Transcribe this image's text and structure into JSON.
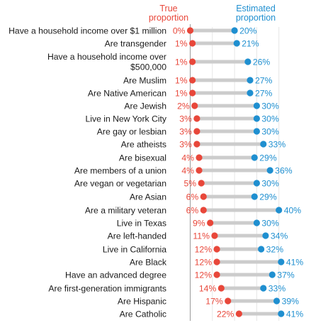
{
  "chart_data": {
    "type": "dumbbell",
    "series": [
      {
        "name": "True proportion",
        "color": "#e8473a"
      },
      {
        "name": "Estimated proportion",
        "color": "#1f8fd0"
      }
    ],
    "header": {
      "true_line1": "True",
      "true_line2": "proportion",
      "est_line1": "Estimated",
      "est_line2": "proportion"
    },
    "rows": [
      {
        "label": [
          "Have a household income over $1 million"
        ],
        "true": 0,
        "estimated": 20
      },
      {
        "label": [
          "Are transgender"
        ],
        "true": 1,
        "estimated": 21
      },
      {
        "label": [
          "Have a household income over",
          "$500,000"
        ],
        "true": 1,
        "estimated": 26
      },
      {
        "label": [
          "Are Muslim"
        ],
        "true": 1,
        "estimated": 27
      },
      {
        "label": [
          "Are Native American"
        ],
        "true": 1,
        "estimated": 27
      },
      {
        "label": [
          "Are Jewish"
        ],
        "true": 2,
        "estimated": 30
      },
      {
        "label": [
          "Live in New York City"
        ],
        "true": 3,
        "estimated": 30
      },
      {
        "label": [
          "Are gay or lesbian"
        ],
        "true": 3,
        "estimated": 30
      },
      {
        "label": [
          "Are atheists"
        ],
        "true": 3,
        "estimated": 33
      },
      {
        "label": [
          "Are bisexual"
        ],
        "true": 4,
        "estimated": 29
      },
      {
        "label": [
          "Are members of a union"
        ],
        "true": 4,
        "estimated": 36
      },
      {
        "label": [
          "Are vegan or vegetarian"
        ],
        "true": 5,
        "estimated": 30
      },
      {
        "label": [
          "Are Asian"
        ],
        "true": 6,
        "estimated": 29
      },
      {
        "label": [
          "Are a military veteran"
        ],
        "true": 6,
        "estimated": 40
      },
      {
        "label": [
          "Live in Texas"
        ],
        "true": 9,
        "estimated": 30
      },
      {
        "label": [
          "Are left-handed"
        ],
        "true": 11,
        "estimated": 34
      },
      {
        "label": [
          "Live in California"
        ],
        "true": 12,
        "estimated": 32
      },
      {
        "label": [
          "Are Black"
        ],
        "true": 12,
        "estimated": 41
      },
      {
        "label": [
          "Have an advanced degree"
        ],
        "true": 12,
        "estimated": 37
      },
      {
        "label": [
          "Are first-generation immigrants"
        ],
        "true": 14,
        "estimated": 33
      },
      {
        "label": [
          "Are Hispanic"
        ],
        "true": 17,
        "estimated": 39
      },
      {
        "label": [
          "Are Catholic"
        ],
        "true": 22,
        "estimated": 41
      }
    ],
    "value_suffix": "%",
    "xlim": [
      0,
      42
    ],
    "gridlines": [
      10,
      20,
      30,
      40
    ],
    "grid": true,
    "colors": {
      "true": "#e8473a",
      "estimated": "#1f8fd0",
      "bar": "#cccccc",
      "grid": "#e6e6e6",
      "axis": "#9a9a9a"
    }
  }
}
